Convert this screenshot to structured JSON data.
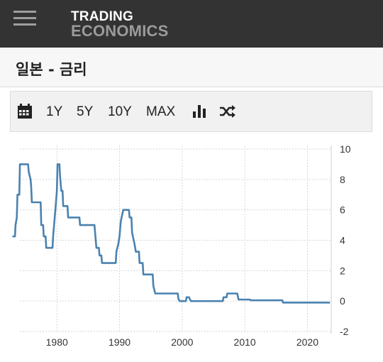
{
  "header": {
    "logo_line1": "TRADING",
    "logo_line2": "ECONOMICS"
  },
  "page": {
    "title": "일본 - 금리"
  },
  "toolbar": {
    "calendar_icon": "calendar-icon",
    "range_1y": "1Y",
    "range_5y": "5Y",
    "range_10y": "10Y",
    "range_max": "MAX",
    "chart_type_icon": "bar-chart-icon",
    "compare_icon": "shuffle-icon"
  },
  "colors": {
    "topbar": "#333333",
    "line": "#4a82b0",
    "grid": "#d6d6d6"
  },
  "chart_data": {
    "type": "line",
    "xlabel": "",
    "ylabel": "",
    "xlim": [
      1972.5,
      2023.8
    ],
    "ylim": [
      -2,
      10
    ],
    "x_ticks": [
      1980,
      1990,
      2000,
      2010,
      2020
    ],
    "y_ticks": [
      10,
      8,
      6,
      4,
      2,
      0,
      -2
    ],
    "grid": true,
    "legend": "none",
    "series": [
      {
        "name": "",
        "points": [
          [
            1972.9,
            4.25
          ],
          [
            1973.3,
            4.25
          ],
          [
            1973.4,
            5.0
          ],
          [
            1973.6,
            5.5
          ],
          [
            1973.7,
            7.0
          ],
          [
            1974.0,
            7.0
          ],
          [
            1974.1,
            9.0
          ],
          [
            1975.4,
            9.0
          ],
          [
            1975.5,
            8.5
          ],
          [
            1975.8,
            8.0
          ],
          [
            1975.9,
            7.5
          ],
          [
            1976.0,
            6.5
          ],
          [
            1977.4,
            6.5
          ],
          [
            1977.5,
            5.0
          ],
          [
            1977.8,
            5.0
          ],
          [
            1977.9,
            4.25
          ],
          [
            1978.2,
            4.25
          ],
          [
            1978.3,
            3.5
          ],
          [
            1979.3,
            3.5
          ],
          [
            1979.4,
            4.25
          ],
          [
            1979.6,
            5.25
          ],
          [
            1979.8,
            6.25
          ],
          [
            1980.0,
            7.25
          ],
          [
            1980.1,
            9.0
          ],
          [
            1980.4,
            9.0
          ],
          [
            1980.5,
            8.25
          ],
          [
            1980.7,
            7.25
          ],
          [
            1980.9,
            7.25
          ],
          [
            1981.0,
            6.25
          ],
          [
            1981.7,
            6.25
          ],
          [
            1981.8,
            5.5
          ],
          [
            1983.6,
            5.5
          ],
          [
            1983.7,
            5.0
          ],
          [
            1986.0,
            5.0
          ],
          [
            1986.1,
            4.5
          ],
          [
            1986.2,
            4.0
          ],
          [
            1986.3,
            3.5
          ],
          [
            1986.7,
            3.5
          ],
          [
            1986.8,
            3.0
          ],
          [
            1987.1,
            3.0
          ],
          [
            1987.2,
            2.5
          ],
          [
            1989.4,
            2.5
          ],
          [
            1989.5,
            3.25
          ],
          [
            1989.8,
            3.75
          ],
          [
            1990.0,
            4.25
          ],
          [
            1990.2,
            5.25
          ],
          [
            1990.6,
            6.0
          ],
          [
            1991.5,
            6.0
          ],
          [
            1991.6,
            5.5
          ],
          [
            1991.9,
            5.5
          ],
          [
            1992.0,
            4.5
          ],
          [
            1992.4,
            3.75
          ],
          [
            1992.6,
            3.25
          ],
          [
            1993.1,
            3.25
          ],
          [
            1993.2,
            2.5
          ],
          [
            1993.7,
            2.5
          ],
          [
            1993.8,
            1.75
          ],
          [
            1995.3,
            1.75
          ],
          [
            1995.4,
            1.0
          ],
          [
            1995.7,
            0.5
          ],
          [
            1999.3,
            0.5
          ],
          [
            1999.4,
            0.15
          ],
          [
            1999.6,
            0.0
          ],
          [
            2000.6,
            0.0
          ],
          [
            2000.7,
            0.25
          ],
          [
            2001.1,
            0.25
          ],
          [
            2001.2,
            0.15
          ],
          [
            2001.4,
            0.0
          ],
          [
            2006.5,
            0.0
          ],
          [
            2006.6,
            0.25
          ],
          [
            2007.1,
            0.25
          ],
          [
            2007.2,
            0.5
          ],
          [
            2008.8,
            0.5
          ],
          [
            2008.9,
            0.3
          ],
          [
            2009.0,
            0.1
          ],
          [
            2010.8,
            0.1
          ],
          [
            2010.9,
            0.05
          ],
          [
            2016.0,
            0.05
          ],
          [
            2016.1,
            -0.1
          ],
          [
            2023.6,
            -0.1
          ]
        ]
      }
    ]
  }
}
